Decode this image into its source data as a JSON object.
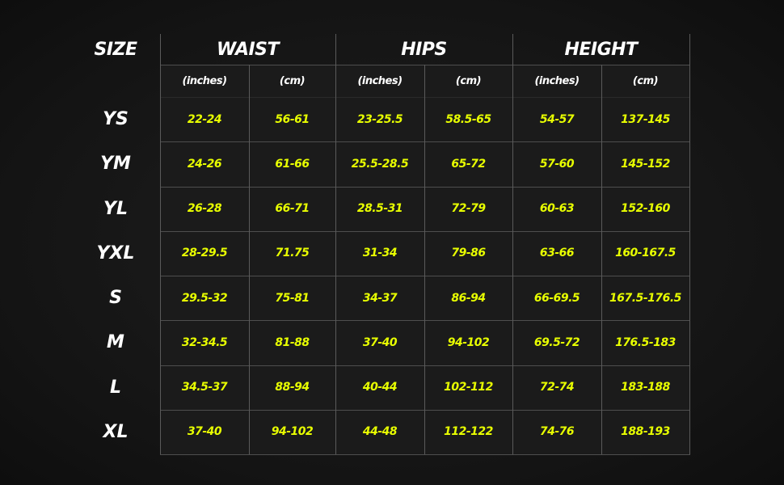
{
  "headers": {
    "size": "SIZE",
    "groups": [
      "WAIST",
      "HIPS",
      "HEIGHT"
    ],
    "units": [
      "(inches)",
      "(cm)",
      "(inches)",
      "(cm)",
      "(inches)",
      "(cm)"
    ]
  },
  "rows": [
    {
      "size": "YS",
      "values": [
        "22-24",
        "56-61",
        "23-25.5",
        "58.5-65",
        "54-57",
        "137-145"
      ]
    },
    {
      "size": "YM",
      "values": [
        "24-26",
        "61-66",
        "25.5-28.5",
        "65-72",
        "57-60",
        "145-152"
      ]
    },
    {
      "size": "YL",
      "values": [
        "26-28",
        "66-71",
        "28.5-31",
        "72-79",
        "60-63",
        "152-160"
      ]
    },
    {
      "size": "YXL",
      "values": [
        "28-29.5",
        "71.75",
        "31-34",
        "79-86",
        "63-66",
        "160-167.5"
      ]
    },
    {
      "size": "S",
      "values": [
        "29.5-32",
        "75-81",
        "34-37",
        "86-94",
        "66-69.5",
        "167.5-176.5"
      ]
    },
    {
      "size": "M",
      "values": [
        "32-34.5",
        "81-88",
        "37-40",
        "94-102",
        "69.5-72",
        "176.5-183"
      ]
    },
    {
      "size": "L",
      "values": [
        "34.5-37",
        "88-94",
        "40-44",
        "102-112",
        "72-74",
        "183-188"
      ]
    },
    {
      "size": "XL",
      "values": [
        "37-40",
        "94-102",
        "44-48",
        "112-122",
        "74-76",
        "188-193"
      ]
    }
  ],
  "colors": {
    "value": "#e8ff00",
    "label": "#ffffff",
    "background": "#141414",
    "cell": "#1b1b1b",
    "grid": "#5a5a5a"
  }
}
